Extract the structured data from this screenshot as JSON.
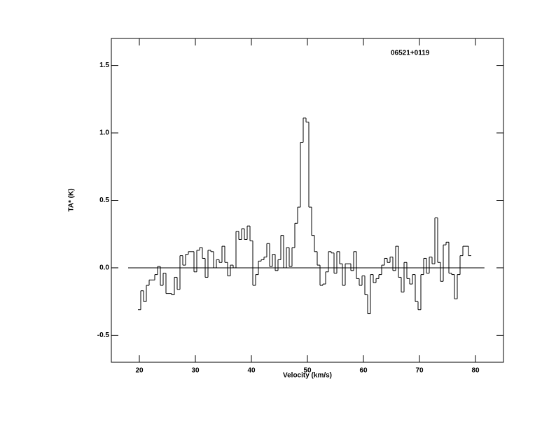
{
  "chart_data": {
    "type": "step",
    "title": "06521+0119",
    "xlabel": "Velocity (km/s)",
    "ylabel": "TA* (K)",
    "xlim": [
      15,
      85
    ],
    "ylim": [
      -0.7,
      1.7
    ],
    "xticks": [
      20,
      30,
      40,
      50,
      60,
      70,
      80
    ],
    "yticks": [
      -0.5,
      {
        "value": 0,
        "label": "0.0"
      },
      0.5,
      {
        "value": 1,
        "label": "1.0"
      },
      1.5
    ],
    "baseline": {
      "value": 0,
      "x": [
        18,
        81.6
      ]
    },
    "color": "#000000",
    "x": [
      20,
      20.5,
      21,
      21.5,
      22,
      22.5,
      23,
      23.5,
      24,
      24.5,
      25,
      25.5,
      26,
      26.5,
      27,
      27.5,
      28,
      28.5,
      29,
      29.5,
      30,
      30.5,
      31,
      31.5,
      32,
      32.5,
      33,
      33.5,
      34,
      34.5,
      35,
      35.5,
      36,
      36.5,
      37,
      37.5,
      38,
      38.5,
      39,
      39.5,
      40,
      40.5,
      41,
      41.5,
      42,
      42.5,
      43,
      43.5,
      44,
      44.5,
      45,
      45.5,
      46,
      46.5,
      47,
      47.5,
      48,
      48.5,
      49,
      49.5,
      50,
      50.5,
      51,
      51.5,
      52,
      52.5,
      53,
      53.5,
      54,
      54.5,
      55,
      55.5,
      56,
      56.5,
      57,
      57.5,
      58,
      58.5,
      59,
      59.5,
      60,
      60.5,
      61,
      61.5,
      62,
      62.5,
      63,
      63.5,
      64,
      64.5,
      65,
      65.5,
      66,
      66.5,
      67,
      67.5,
      68,
      68.5,
      69,
      69.5,
      70,
      70.5,
      71,
      71.5,
      72,
      72.5,
      73,
      73.5,
      74,
      74.5,
      75,
      75.5,
      76,
      76.5,
      77,
      77.5,
      78,
      78.5,
      79
    ],
    "values": [
      -0.31,
      -0.17,
      -0.25,
      -0.13,
      -0.09,
      -0.09,
      -0.05,
      0.01,
      -0.13,
      -0.04,
      -0.19,
      -0.19,
      -0.2,
      -0.07,
      -0.16,
      0.09,
      0.02,
      0.1,
      0.12,
      0.12,
      -0.03,
      0.13,
      0.15,
      0.07,
      -0.07,
      0.13,
      0.12,
      0.0,
      0.06,
      0.04,
      0.16,
      0.04,
      -0.06,
      0.02,
      0.0,
      0.27,
      0.21,
      0.29,
      0.21,
      0.31,
      0.2,
      -0.13,
      -0.05,
      0.05,
      0.06,
      0.08,
      0.18,
      0.01,
      0.1,
      -0.02,
      0.06,
      0.24,
      0.0,
      0.15,
      0.01,
      0.15,
      0.33,
      0.45,
      0.93,
      1.11,
      1.08,
      0.45,
      0.24,
      0.12,
      0.02,
      -0.13,
      -0.12,
      -0.03,
      0.12,
      0.11,
      -0.04,
      0.12,
      0.03,
      -0.13,
      0.03,
      0.03,
      -0.02,
      0.12,
      -0.08,
      -0.13,
      -0.06,
      -0.2,
      -0.34,
      -0.05,
      -0.11,
      -0.08,
      -0.05,
      0.02,
      0.07,
      0.04,
      0.08,
      -0.02,
      0.16,
      -0.07,
      -0.18,
      0.04,
      -0.08,
      -0.12,
      -0.05,
      -0.25,
      -0.31,
      -0.05,
      0.07,
      -0.04,
      0.08,
      0.03,
      0.37,
      0.04,
      -0.1,
      0.17,
      0.19,
      -0.04,
      -0.05,
      -0.23,
      -0.05,
      0.09,
      0.16,
      0.16,
      0.09
    ]
  }
}
